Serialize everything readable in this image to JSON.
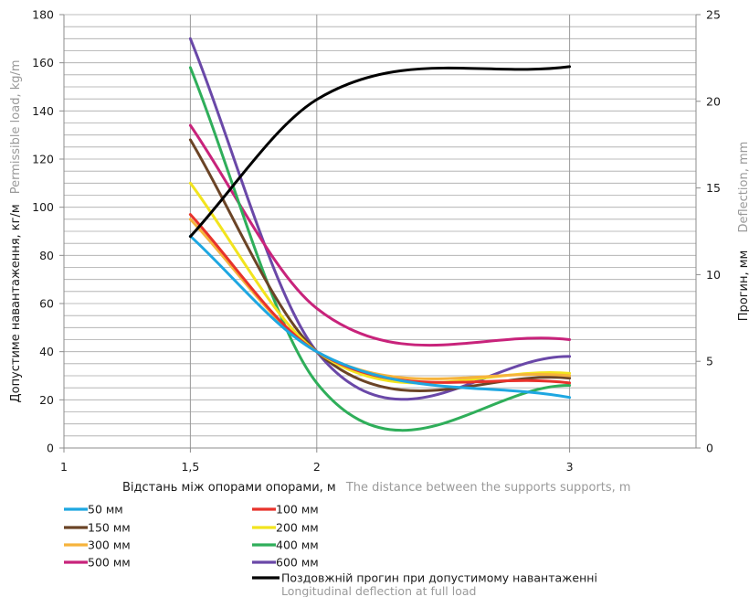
{
  "chart_data": {
    "type": "line",
    "x_axis": {
      "label_ua": "Відстань між опорами опорами, м",
      "label_en": "The distance between the supports supports, m",
      "range": [
        1,
        3.5
      ],
      "tick_values": [
        1,
        1.5,
        2,
        3
      ],
      "tick_labels": [
        "1",
        "1,5",
        "2",
        "3"
      ],
      "grid_values": [
        1,
        1.5,
        2,
        3
      ]
    },
    "y_axis": {
      "label_ua": "Допустиме навантаження, кг/м",
      "label_en": "Permissible load, kg/m",
      "range": [
        0,
        180
      ],
      "tick_values": [
        0,
        20,
        40,
        60,
        80,
        100,
        120,
        140,
        160,
        180
      ],
      "tick_labels": [
        "0",
        "20",
        "40",
        "60",
        "80",
        "100",
        "120",
        "140",
        "160",
        "180"
      ],
      "minor_step": 5
    },
    "y2_axis": {
      "label_ua": "Прогин, мм",
      "label_en": "Deflection, mm",
      "range": [
        0,
        25
      ],
      "tick_values": [
        0,
        5,
        10,
        15,
        20,
        25
      ],
      "tick_labels": [
        "0",
        "5",
        "10",
        "15",
        "20",
        "25"
      ]
    },
    "series": [
      {
        "name": "50 мм",
        "color": "#1ea7e1",
        "axis": "y",
        "x": [
          1.5,
          2,
          3
        ],
        "values": [
          88,
          40,
          21
        ]
      },
      {
        "name": "100 мм",
        "color": "#e8322b",
        "axis": "y",
        "x": [
          1.5,
          2,
          3
        ],
        "values": [
          97,
          40,
          27
        ]
      },
      {
        "name": "150 мм",
        "color": "#6b4426",
        "axis": "y",
        "x": [
          1.5,
          2,
          3
        ],
        "values": [
          128,
          40,
          29
        ]
      },
      {
        "name": "200 мм",
        "color": "#f2e41e",
        "axis": "y",
        "x": [
          1.5,
          2,
          3
        ],
        "values": [
          110,
          40,
          31
        ]
      },
      {
        "name": "300 мм",
        "color": "#f6b33c",
        "axis": "y",
        "x": [
          1.5,
          2,
          3
        ],
        "values": [
          95,
          40,
          30
        ]
      },
      {
        "name": "400 мм",
        "color": "#2fae5a",
        "axis": "y",
        "x": [
          1.5,
          2,
          3
        ],
        "values": [
          158,
          27,
          26
        ]
      },
      {
        "name": "500 мм",
        "color": "#c8237b",
        "axis": "y",
        "x": [
          1.5,
          2,
          3
        ],
        "values": [
          134,
          58,
          45
        ]
      },
      {
        "name": "600 мм",
        "color": "#6a48a8",
        "axis": "y",
        "x": [
          1.5,
          2,
          3
        ],
        "values": [
          170,
          40,
          38
        ]
      },
      {
        "name": "Поздовжній прогин при допустимому навантаженні",
        "name_en": "Longitudinal deflection at full load",
        "color": "#000000",
        "axis": "y2",
        "x": [
          1.5,
          2,
          3
        ],
        "values": [
          12.2,
          20.1,
          22
        ]
      }
    ],
    "legend_position": "bottom",
    "grid": true
  }
}
